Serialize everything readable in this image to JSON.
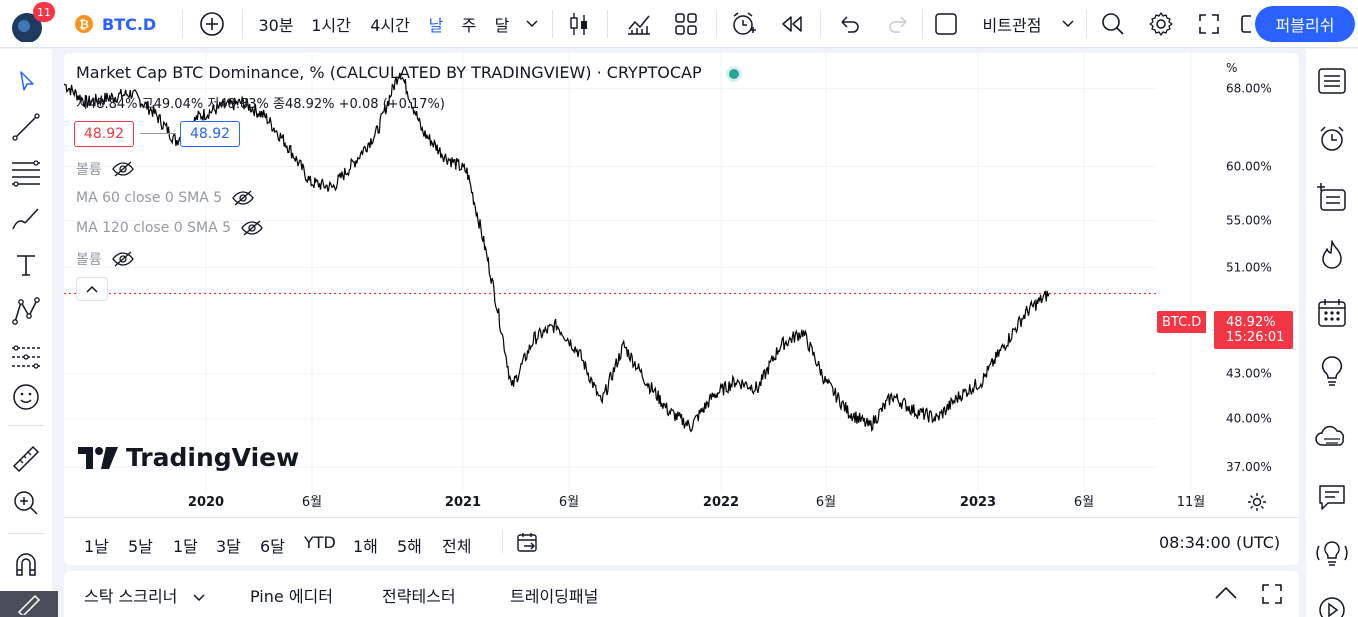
{
  "topbar": {
    "notification_count": "11",
    "symbol": "BTC.D",
    "intervals": [
      "30분",
      "1시간",
      "4시간",
      "날",
      "주",
      "달"
    ],
    "active_interval": "날",
    "layout_name": "비트관점",
    "publish_label": "퍼블리쉬"
  },
  "legend": {
    "title": "Market Cap BTC Dominance, % (CALCULATED BY TRADINGVIEW) · CRYPTOCAP",
    "ohlc": "시48.84% 고49.04% 저48.83% 종48.92% +0.08 (+0.17%)",
    "bid": "48.92",
    "ask": "48.92",
    "indicators": [
      "볼륨",
      "MA 60 close 0 SMA 5",
      "MA 120 close 0 SMA 5",
      "볼륨"
    ],
    "watermark": "TradingView",
    "status_color": "#26a69a"
  },
  "chart_data": {
    "type": "line",
    "title": "Market Cap BTC Dominance, % (CALCULATED BY TRADINGVIEW) · CRYPTOCAP",
    "scale": "log",
    "y_unit": "%",
    "ylim": [
      35.5,
      72
    ],
    "y_ticks": [
      {
        "v": 68,
        "label": "68.00%"
      },
      {
        "v": 60,
        "label": "60.00%"
      },
      {
        "v": 55,
        "label": "55.00%"
      },
      {
        "v": 51,
        "label": "51.00%"
      },
      {
        "v": 43,
        "label": "43.00%"
      },
      {
        "v": 40,
        "label": "40.00%"
      },
      {
        "v": 37,
        "label": "37.00%"
      }
    ],
    "x_ticks": [
      "2020",
      "6월",
      "2021",
      "6월",
      "2022",
      "6월",
      "2023",
      "6월",
      "11월"
    ],
    "bold_x_ticks": [
      "2020",
      "2021",
      "2022",
      "2023"
    ],
    "x": [
      "2019-09",
      "2019-10",
      "2019-11",
      "2019-12",
      "2020-01",
      "2020-02",
      "2020-03",
      "2020-04",
      "2020-05",
      "2020-06",
      "2020-07",
      "2020-08",
      "2020-09",
      "2020-10",
      "2020-11",
      "2020-12",
      "2021-01",
      "2021-02",
      "2021-03",
      "2021-04",
      "2021-05",
      "2021-06",
      "2021-07",
      "2021-08",
      "2021-09",
      "2021-10",
      "2021-11",
      "2021-12",
      "2022-01",
      "2022-02",
      "2022-03",
      "2022-04",
      "2022-05",
      "2022-06",
      "2022-07",
      "2022-08",
      "2022-09",
      "2022-10",
      "2022-11",
      "2022-12",
      "2023-01",
      "2023-02",
      "2023-03",
      "2023-04",
      "2023-05"
    ],
    "values": [
      68.5,
      66.5,
      67.0,
      67.5,
      65.5,
      62.5,
      65.0,
      66.0,
      66.5,
      65.0,
      62.0,
      58.5,
      58.0,
      60.5,
      63.5,
      70.0,
      63.5,
      61.0,
      59.5,
      51.0,
      42.0,
      45.5,
      46.5,
      44.5,
      41.0,
      45.0,
      42.5,
      40.5,
      39.5,
      41.5,
      42.5,
      42.0,
      45.0,
      46.0,
      42.5,
      40.5,
      39.5,
      41.5,
      40.5,
      40.0,
      41.5,
      42.5,
      45.0,
      47.5,
      48.92
    ],
    "last_value": "48.92",
    "price_line_color": "#f23645",
    "line_color": "#000000"
  },
  "price_scale": {
    "unit_label": "%",
    "symbol_tag": "BTC.D",
    "last_price_label": "48.92%",
    "countdown": "15:26:01"
  },
  "range_bar": {
    "ranges": [
      "1날",
      "5날",
      "1달",
      "3달",
      "6달",
      "YTD",
      "1해",
      "5해",
      "전체"
    ],
    "time": "08:34:00 (UTC)"
  },
  "bottom_panel": {
    "tabs": [
      "스탁 스크리너",
      "Pine 에디터",
      "전략테스터",
      "트레이딩패널"
    ]
  },
  "colors": {
    "accent": "#2962ff",
    "down": "#f23645",
    "notification": "#f23645",
    "symbol_icon": "#f7931a"
  }
}
